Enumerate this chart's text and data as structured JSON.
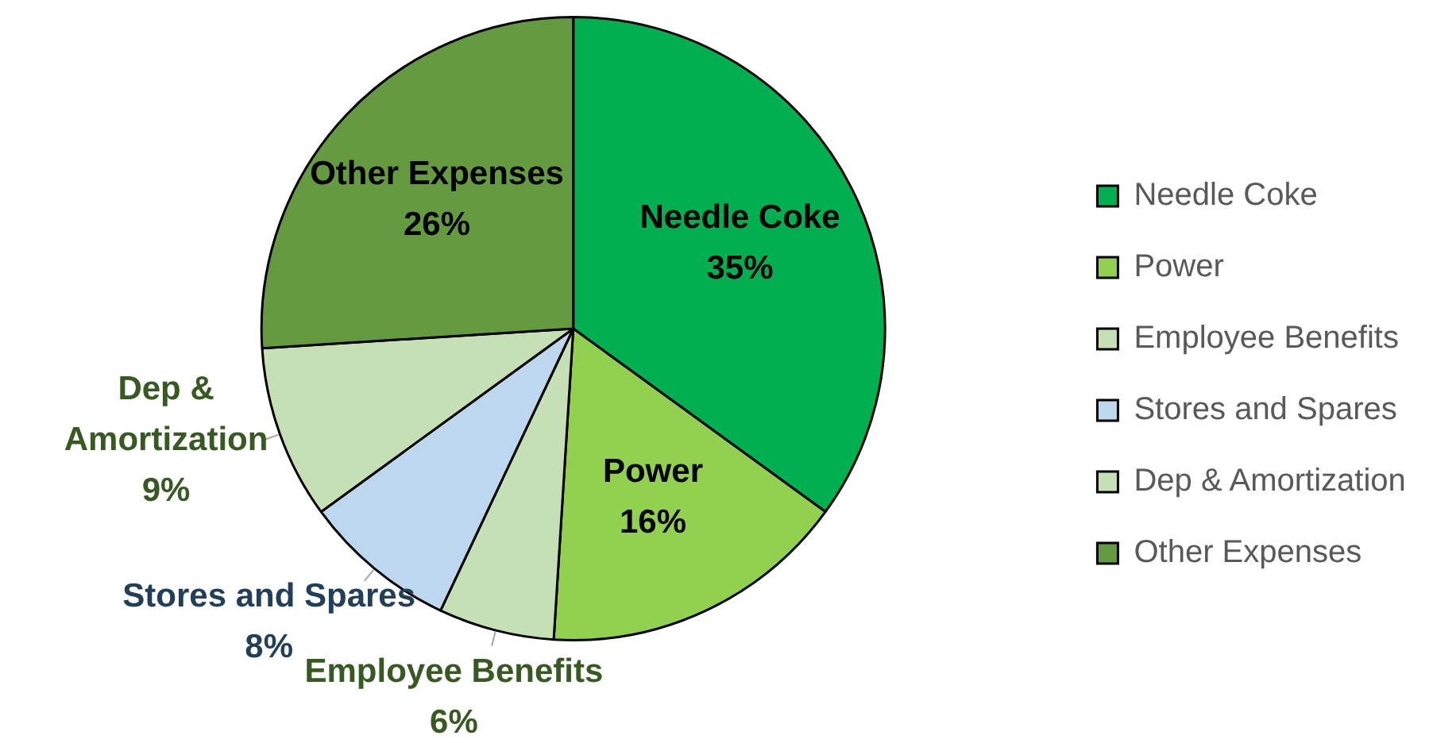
{
  "chart_data": {
    "type": "pie",
    "categories": [
      "Needle Coke",
      "Power",
      "Employee Benefits",
      "Stores and Spares",
      "Dep & Amortization",
      "Other Expenses"
    ],
    "values": [
      35,
      16,
      6,
      8,
      9,
      26
    ],
    "colors": [
      "#00b050",
      "#92d050",
      "#c5e0b4",
      "#bdd7ee",
      "#c5e0b4",
      "#649b40"
    ],
    "value_labels": [
      "35%",
      "16%",
      "6%",
      "8%",
      "9%",
      "26%"
    ],
    "legend": "right"
  }
}
